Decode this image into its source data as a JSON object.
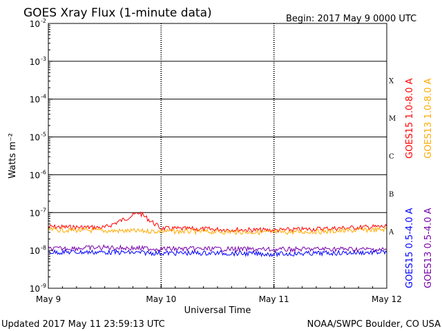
{
  "header": {
    "title": "GOES Xray Flux (1-minute data)",
    "begin_label": "Begin:  2017 May 9 0000 UTC"
  },
  "footer": {
    "updated": "Updated 2017 May 11 23:59:13 UTC",
    "credit": "NOAA/SWPC Boulder, CO USA"
  },
  "chart_data": {
    "type": "line",
    "title": "GOES Xray Flux (1-minute data)",
    "xlabel": "Universal Time",
    "ylabel": "Watts m⁻²",
    "y_scale": "log",
    "ylim": [
      1e-09,
      0.01
    ],
    "y_ticks": [
      {
        "base": "10",
        "exp": "-9",
        "value": 1e-09
      },
      {
        "base": "10",
        "exp": "-8",
        "value": 1e-08
      },
      {
        "base": "10",
        "exp": "-7",
        "value": 1e-07
      },
      {
        "base": "10",
        "exp": "-6",
        "value": 1e-06
      },
      {
        "base": "10",
        "exp": "-5",
        "value": 1e-05
      },
      {
        "base": "10",
        "exp": "-4",
        "value": 0.0001
      },
      {
        "base": "10",
        "exp": "-3",
        "value": 0.001
      },
      {
        "base": "10",
        "exp": "-2",
        "value": 0.01
      }
    ],
    "xlim": [
      "2017-05-09",
      "2017-05-12"
    ],
    "x_ticks": [
      "May 9",
      "May 10",
      "May 11",
      "May 12"
    ],
    "flare_classes": [
      {
        "label": "A",
        "value": 1e-08
      },
      {
        "label": "B",
        "value": 1e-07
      },
      {
        "label": "C",
        "value": 1e-06
      },
      {
        "label": "M",
        "value": 1e-05
      },
      {
        "label": "X",
        "value": 0.0001
      }
    ],
    "grid": "horizontal lines at 1e-7 through 1e-3; dotted vertical lines at day boundaries",
    "legend_position": "right, rotated vertically",
    "series": [
      {
        "name": "GOES15 1.0-8.0 A",
        "color": "#ff0000",
        "x": [
          "2017-05-09T00:00",
          "2017-05-09T12:00",
          "2017-05-09T19:20",
          "2017-05-10T00:00",
          "2017-05-10T12:00",
          "2017-05-11T00:00",
          "2017-05-11T12:00",
          "2017-05-12T00:00"
        ],
        "values": [
          4.2e-08,
          4e-08,
          1e-07,
          3.8e-08,
          3.6e-08,
          3.4e-08,
          3.8e-08,
          4.3e-08
        ]
      },
      {
        "name": "GOES13 1.0-8.0 A",
        "color": "#ffaa00",
        "x": [
          "2017-05-09T00:00",
          "2017-05-09T12:00",
          "2017-05-10T00:00",
          "2017-05-10T12:00",
          "2017-05-11T00:00",
          "2017-05-11T12:00",
          "2017-05-12T00:00"
        ],
        "values": [
          3.5e-08,
          3.3e-08,
          3.2e-08,
          3.1e-08,
          3e-08,
          3.2e-08,
          3.6e-08
        ]
      },
      {
        "name": "GOES15 0.5-4.0 A",
        "color": "#0000ff",
        "x": [
          "2017-05-09T00:00",
          "2017-05-09T12:00",
          "2017-05-10T00:00",
          "2017-05-10T12:00",
          "2017-05-11T00:00",
          "2017-05-11T12:00",
          "2017-05-12T00:00"
        ],
        "values": [
          9e-09,
          9e-09,
          8.5e-09,
          8.5e-09,
          8e-09,
          8.5e-09,
          9e-09
        ]
      },
      {
        "name": "GOES13 0.5-4.0 A",
        "color": "#7700aa",
        "x": [
          "2017-05-09T00:00",
          "2017-05-09T12:00",
          "2017-05-10T00:00",
          "2017-05-10T12:00",
          "2017-05-11T00:00",
          "2017-05-11T12:00",
          "2017-05-12T00:00"
        ],
        "values": [
          1.1e-08,
          1.2e-08,
          1.1e-08,
          1.1e-08,
          1.05e-08,
          1.1e-08,
          1.05e-08
        ]
      }
    ]
  }
}
